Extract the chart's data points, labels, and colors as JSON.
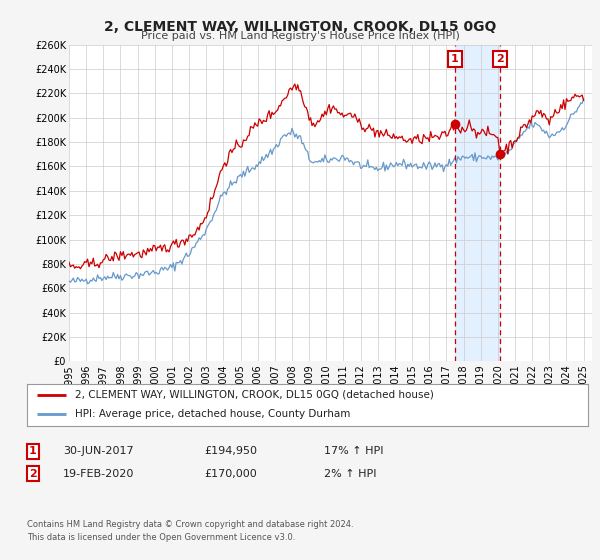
{
  "title": "2, CLEMENT WAY, WILLINGTON, CROOK, DL15 0GQ",
  "subtitle": "Price paid vs. HM Land Registry's House Price Index (HPI)",
  "ylim": [
    0,
    260000
  ],
  "xlim_start": 1995.0,
  "xlim_end": 2025.5,
  "yticks": [
    0,
    20000,
    40000,
    60000,
    80000,
    100000,
    120000,
    140000,
    160000,
    180000,
    200000,
    220000,
    240000,
    260000
  ],
  "ytick_labels": [
    "£0",
    "£20K",
    "£40K",
    "£60K",
    "£80K",
    "£100K",
    "£120K",
    "£140K",
    "£160K",
    "£180K",
    "£200K",
    "£220K",
    "£240K",
    "£260K"
  ],
  "xticks": [
    1995,
    1996,
    1997,
    1998,
    1999,
    2000,
    2001,
    2002,
    2003,
    2004,
    2005,
    2006,
    2007,
    2008,
    2009,
    2010,
    2011,
    2012,
    2013,
    2014,
    2015,
    2016,
    2017,
    2018,
    2019,
    2020,
    2021,
    2022,
    2023,
    2024,
    2025
  ],
  "red_line_color": "#cc0000",
  "blue_line_color": "#6699cc",
  "sale1_x": 2017.5,
  "sale1_y": 194950,
  "sale2_x": 2020.125,
  "sale2_y": 170000,
  "vline1_x": 2017.5,
  "vline2_x": 2020.125,
  "shade_color": "#ddeeff",
  "legend_line1": "2, CLEMENT WAY, WILLINGTON, CROOK, DL15 0GQ (detached house)",
  "legend_line2": "HPI: Average price, detached house, County Durham",
  "table_row1_num": "1",
  "table_row1_date": "30-JUN-2017",
  "table_row1_price": "£194,950",
  "table_row1_hpi": "17% ↑ HPI",
  "table_row2_num": "2",
  "table_row2_date": "19-FEB-2020",
  "table_row2_price": "£170,000",
  "table_row2_hpi": "2% ↑ HPI",
  "footer1": "Contains HM Land Registry data © Crown copyright and database right 2024.",
  "footer2": "This data is licensed under the Open Government Licence v3.0.",
  "background_color": "#f5f5f5",
  "plot_bg_color": "#ffffff",
  "grid_color": "#cccccc"
}
